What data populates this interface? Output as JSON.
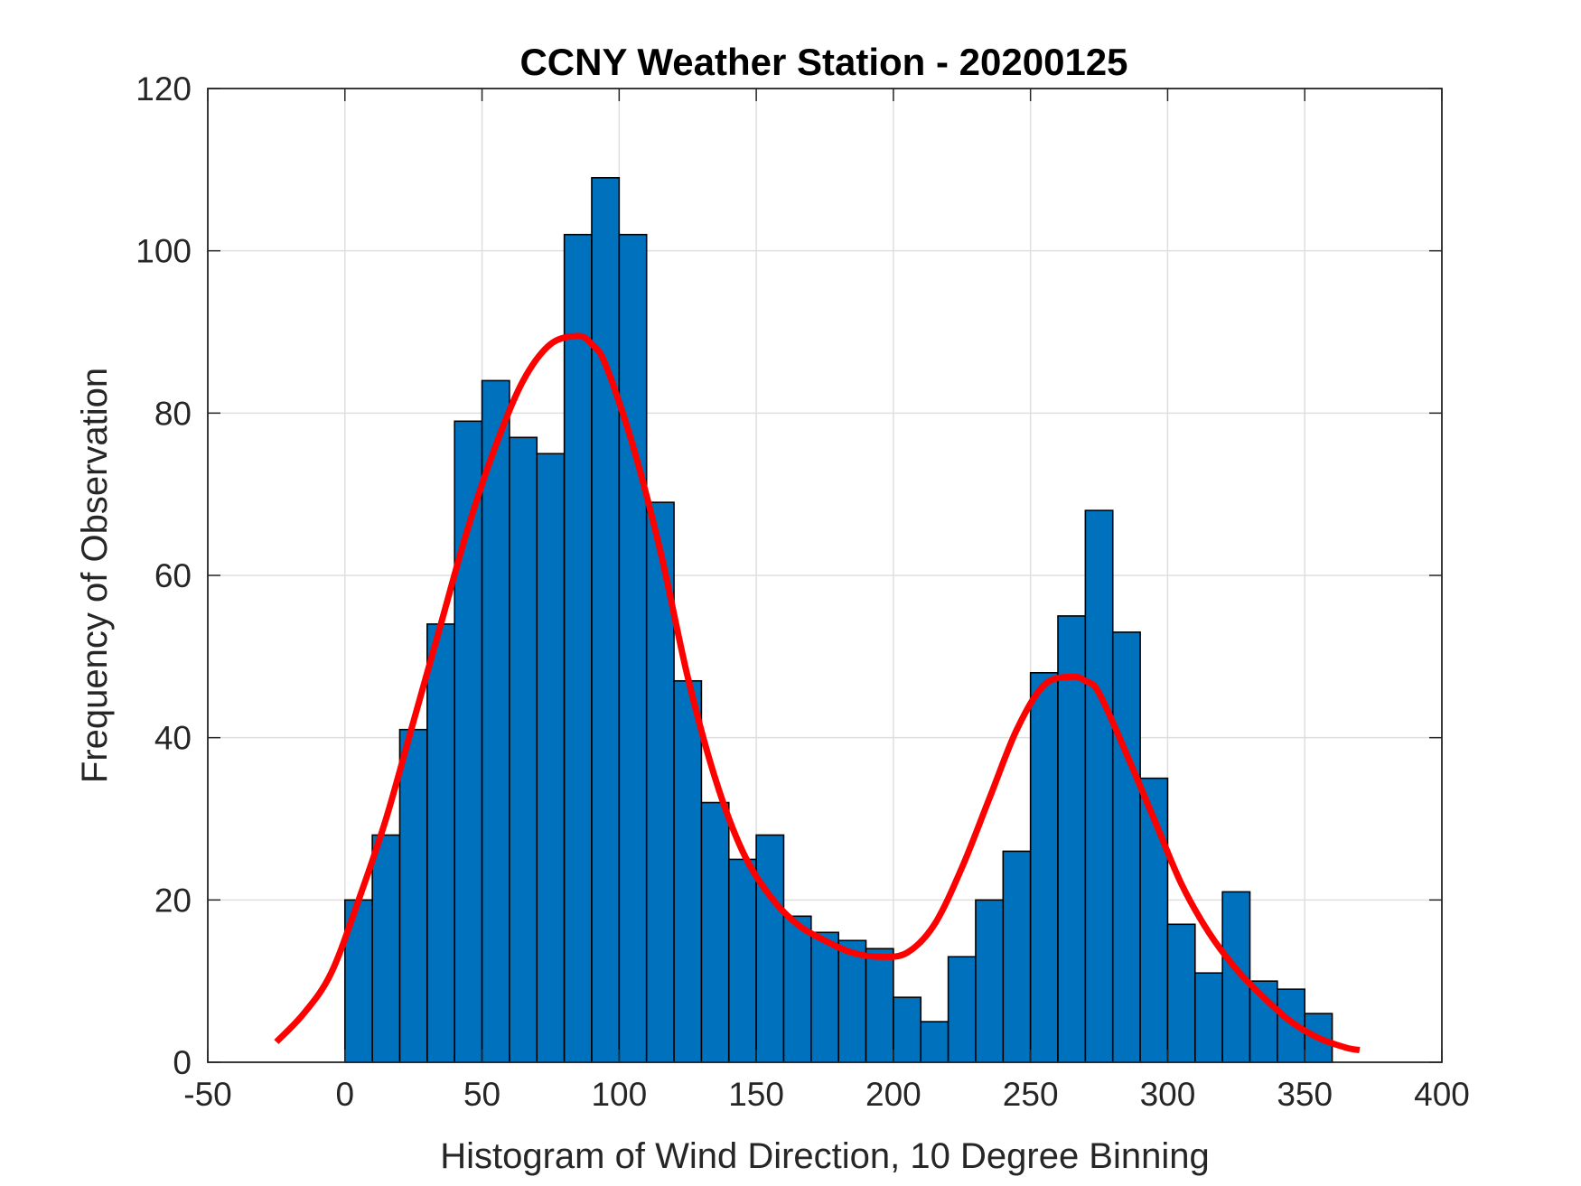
{
  "chart_data": {
    "type": "bar",
    "subtype": "histogram",
    "title": "CCNY Weather Station - 20200125",
    "xlabel": "Histogram of Wind Direction, 10 Degree Binning",
    "ylabel": "Frequency of Observation",
    "xlim": [
      -50,
      400
    ],
    "ylim": [
      0,
      120
    ],
    "xticks": [
      -50,
      0,
      50,
      100,
      150,
      200,
      250,
      300,
      350,
      400
    ],
    "yticks": [
      0,
      20,
      40,
      60,
      80,
      100,
      120
    ],
    "xtick_labels": [
      "-50",
      "0",
      "50",
      "100",
      "150",
      "200",
      "250",
      "300",
      "350",
      "400"
    ],
    "ytick_labels": [
      "0",
      "20",
      "40",
      "60",
      "80",
      "100",
      "120"
    ],
    "grid": true,
    "bin_width": 10,
    "bin_edges_start": 0,
    "counts": [
      20,
      28,
      41,
      54,
      79,
      84,
      77,
      75,
      102,
      109,
      102,
      69,
      47,
      32,
      25,
      28,
      18,
      16,
      15,
      14,
      8,
      5,
      13,
      20,
      26,
      48,
      55,
      68,
      53,
      35,
      17,
      11,
      21,
      10,
      9,
      6
    ],
    "fit_curve": {
      "name": "fit",
      "x": [
        -25,
        -15,
        -5,
        5,
        15,
        25,
        35,
        45,
        55,
        65,
        75,
        85,
        90,
        95,
        105,
        115,
        125,
        135,
        145,
        155,
        165,
        175,
        185,
        195,
        205,
        215,
        225,
        235,
        245,
        255,
        265,
        270,
        275,
        285,
        295,
        305,
        315,
        325,
        335,
        345,
        355,
        365,
        370
      ],
      "y": [
        2.5,
        6,
        11,
        20,
        30,
        42,
        54,
        66,
        76,
        84,
        88.5,
        89.5,
        88.5,
        86,
        76,
        63,
        47.5,
        35,
        26,
        20.5,
        17,
        15,
        13.5,
        13,
        13.5,
        17,
        24,
        32.5,
        41,
        46.5,
        47.5,
        47,
        45.5,
        38,
        30,
        22,
        16,
        11.5,
        8,
        5,
        3,
        1.8,
        1.5
      ]
    },
    "colors": {
      "bar": "#0072bd",
      "curve": "#ff0000"
    }
  }
}
